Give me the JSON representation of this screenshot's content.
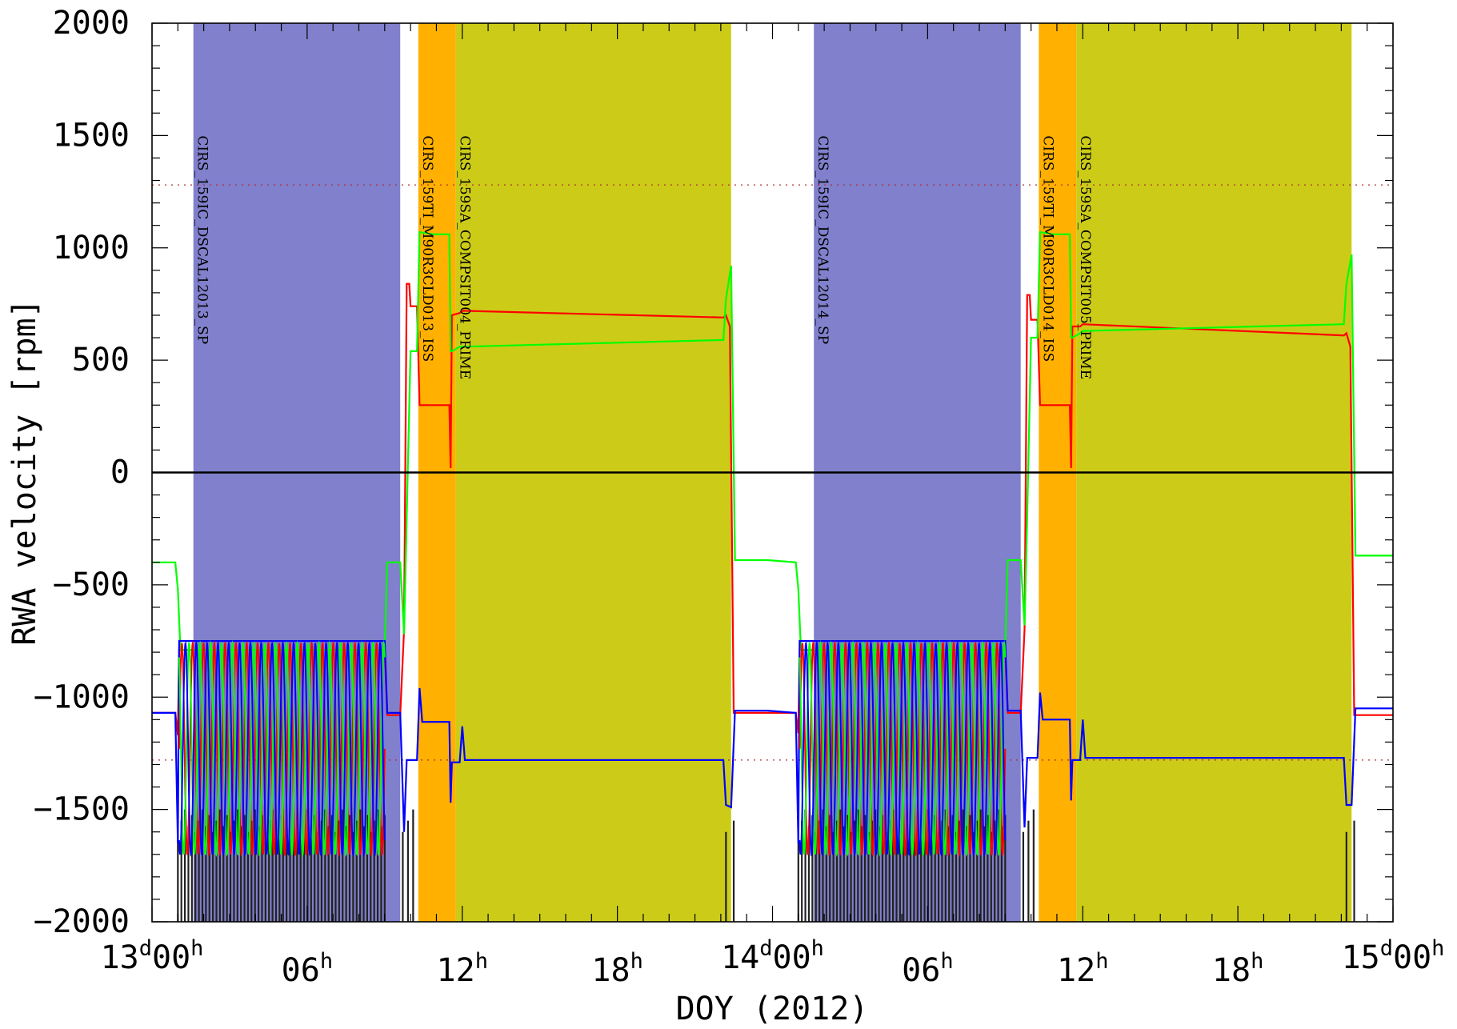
{
  "chart_data": {
    "type": "line",
    "title": "",
    "xlabel": "DOY (2012)",
    "ylabel": "RWA velocity [rpm]",
    "xlim_hours": [
      0,
      48
    ],
    "ylim": [
      -2000,
      2000
    ],
    "y_ticks": [
      -2000,
      -1500,
      -1000,
      -500,
      0,
      500,
      1000,
      1500,
      2000
    ],
    "y_tick_labels": [
      "−2000",
      "−1500",
      "−1000",
      "−500",
      "0",
      "500",
      "1000",
      "1500",
      "2000"
    ],
    "x_ticks": [
      {
        "hour": 0,
        "day": "13",
        "sup": "d",
        "main": "00",
        "unit": "h"
      },
      {
        "hour": 6,
        "day": "",
        "sup": "",
        "main": "06",
        "unit": "h"
      },
      {
        "hour": 12,
        "day": "",
        "sup": "",
        "main": "12",
        "unit": "h"
      },
      {
        "hour": 18,
        "day": "",
        "sup": "",
        "main": "18",
        "unit": "h"
      },
      {
        "hour": 24,
        "day": "14",
        "sup": "d",
        "main": "00",
        "unit": "h"
      },
      {
        "hour": 30,
        "day": "",
        "sup": "",
        "main": "06",
        "unit": "h"
      },
      {
        "hour": 36,
        "day": "",
        "sup": "",
        "main": "12",
        "unit": "h"
      },
      {
        "hour": 42,
        "day": "",
        "sup": "",
        "main": "18",
        "unit": "h"
      },
      {
        "hour": 48,
        "day": "15",
        "sup": "d",
        "main": "00",
        "unit": "h"
      }
    ],
    "limit_lines": [
      1280,
      -1280
    ],
    "zero_line": 0,
    "observations": [
      {
        "label": "CIRS_159IC_DSCAL12013_SP",
        "start": 1.6,
        "end": 9.6,
        "color": "#8080cc"
      },
      {
        "label": "CIRS_159TI_M90R3CLD013_ISS",
        "start": 10.3,
        "end": 11.75,
        "color": "#ffb000"
      },
      {
        "label": "CIRS_159SA_COMPSIT004_PRIME",
        "start": 11.75,
        "end": 22.4,
        "color": "#cccc18"
      },
      {
        "label": "CIRS_159IC_DSCAL12014_SP",
        "start": 25.6,
        "end": 33.6,
        "color": "#8080cc"
      },
      {
        "label": "CIRS_159TI_M90R3CLD014_ISS",
        "start": 34.3,
        "end": 35.75,
        "color": "#ffb000"
      },
      {
        "label": "CIRS_159SA_COMPSIT005_PRIME",
        "start": 35.75,
        "end": 46.4,
        "color": "#cccc18"
      }
    ],
    "series": [
      {
        "color": "#ff0000",
        "points": [
          [
            0,
            -1070
          ],
          [
            0.9,
            -1070
          ],
          [
            1.0,
            -1170
          ],
          [
            1.05,
            -790
          ],
          [
            9.0,
            -790
          ],
          [
            9.1,
            -1080
          ],
          [
            9.6,
            -1080
          ],
          [
            9.75,
            -700
          ],
          [
            9.85,
            840
          ],
          [
            9.95,
            840
          ],
          [
            10.0,
            740
          ],
          [
            10.25,
            740
          ],
          [
            10.35,
            300
          ],
          [
            11.5,
            300
          ],
          [
            11.55,
            20
          ],
          [
            11.6,
            700
          ],
          [
            11.9,
            710
          ],
          [
            12.0,
            720
          ],
          [
            22.1,
            690
          ],
          [
            22.2,
            700
          ],
          [
            22.35,
            650
          ],
          [
            22.5,
            -1070
          ],
          [
            23.8,
            -1070
          ],
          [
            24.9,
            -1070
          ],
          [
            25.0,
            -1160
          ],
          [
            25.05,
            -790
          ],
          [
            33.0,
            -790
          ],
          [
            33.1,
            -1070
          ],
          [
            33.6,
            -1070
          ],
          [
            33.75,
            -700
          ],
          [
            33.85,
            790
          ],
          [
            33.95,
            790
          ],
          [
            34.0,
            680
          ],
          [
            34.25,
            680
          ],
          [
            34.35,
            300
          ],
          [
            35.5,
            300
          ],
          [
            35.55,
            20
          ],
          [
            35.6,
            650
          ],
          [
            35.9,
            650
          ],
          [
            36.0,
            660
          ],
          [
            46.1,
            610
          ],
          [
            46.2,
            620
          ],
          [
            46.35,
            560
          ],
          [
            46.5,
            -1080
          ],
          [
            48,
            -1080
          ]
        ]
      },
      {
        "color": "#00ff00",
        "points": [
          [
            0,
            -400
          ],
          [
            0.9,
            -400
          ],
          [
            1.0,
            -520
          ],
          [
            1.1,
            -790
          ],
          [
            9.0,
            -790
          ],
          [
            9.1,
            -400
          ],
          [
            9.6,
            -400
          ],
          [
            9.75,
            -720
          ],
          [
            9.85,
            -200
          ],
          [
            10.0,
            540
          ],
          [
            10.25,
            540
          ],
          [
            10.35,
            1070
          ],
          [
            10.9,
            1060
          ],
          [
            11.5,
            1060
          ],
          [
            11.55,
            540
          ],
          [
            11.6,
            540
          ],
          [
            11.9,
            560
          ],
          [
            12.0,
            560
          ],
          [
            22.1,
            590
          ],
          [
            22.2,
            770
          ],
          [
            22.4,
            920
          ],
          [
            22.55,
            -390
          ],
          [
            23.8,
            -390
          ],
          [
            24.9,
            -400
          ],
          [
            25.0,
            -520
          ],
          [
            25.1,
            -790
          ],
          [
            33.0,
            -790
          ],
          [
            33.1,
            -390
          ],
          [
            33.6,
            -390
          ],
          [
            33.75,
            -680
          ],
          [
            33.85,
            -200
          ],
          [
            34.0,
            600
          ],
          [
            34.25,
            600
          ],
          [
            34.35,
            1070
          ],
          [
            34.9,
            1060
          ],
          [
            35.5,
            1060
          ],
          [
            35.55,
            600
          ],
          [
            35.6,
            600
          ],
          [
            35.9,
            620
          ],
          [
            36.0,
            630
          ],
          [
            46.1,
            660
          ],
          [
            46.2,
            840
          ],
          [
            46.4,
            970
          ],
          [
            46.55,
            -370
          ],
          [
            48,
            -370
          ]
        ]
      },
      {
        "color": "#0000ff",
        "points": [
          [
            0,
            -1070
          ],
          [
            0.9,
            -1070
          ],
          [
            1.0,
            -1650
          ],
          [
            1.05,
            -750
          ],
          [
            9.0,
            -750
          ],
          [
            9.1,
            -1070
          ],
          [
            9.6,
            -1070
          ],
          [
            9.75,
            -1600
          ],
          [
            9.85,
            -1280
          ],
          [
            10.25,
            -1280
          ],
          [
            10.35,
            -960
          ],
          [
            10.45,
            -1110
          ],
          [
            11.5,
            -1110
          ],
          [
            11.55,
            -1470
          ],
          [
            11.6,
            -1290
          ],
          [
            11.9,
            -1290
          ],
          [
            12.0,
            -1130
          ],
          [
            12.1,
            -1280
          ],
          [
            22.1,
            -1280
          ],
          [
            22.2,
            -1480
          ],
          [
            22.4,
            -1490
          ],
          [
            22.55,
            -1060
          ],
          [
            23.8,
            -1060
          ],
          [
            24.9,
            -1070
          ],
          [
            25.0,
            -1650
          ],
          [
            25.05,
            -750
          ],
          [
            33.0,
            -750
          ],
          [
            33.1,
            -1060
          ],
          [
            33.6,
            -1060
          ],
          [
            33.75,
            -1580
          ],
          [
            33.85,
            -1270
          ],
          [
            34.25,
            -1270
          ],
          [
            34.35,
            -980
          ],
          [
            34.45,
            -1100
          ],
          [
            35.5,
            -1100
          ],
          [
            35.55,
            -1460
          ],
          [
            35.6,
            -1280
          ],
          [
            35.9,
            -1280
          ],
          [
            36.0,
            -1100
          ],
          [
            36.1,
            -1270
          ],
          [
            46.1,
            -1270
          ],
          [
            46.2,
            -1480
          ],
          [
            46.4,
            -1480
          ],
          [
            46.55,
            -1050
          ],
          [
            48,
            -1050
          ]
        ]
      }
    ],
    "oscillation_bursts": [
      {
        "start": 1.05,
        "end": 9.0,
        "cycles": 19,
        "min": -1700,
        "max": -760,
        "colors": [
          "#ff0000",
          "#00ff00",
          "#0000ff"
        ]
      },
      {
        "start": 25.05,
        "end": 33.0,
        "cycles": 19,
        "min": -1700,
        "max": -760,
        "colors": [
          "#ff0000",
          "#00ff00",
          "#0000ff"
        ]
      }
    ],
    "event_spikes": [
      {
        "start": 1.0,
        "end": 9.0,
        "count": 60,
        "top": -1600,
        "bottom": -2000
      },
      {
        "start": 9.7,
        "end": 10.1,
        "count": 3,
        "top": -1600,
        "bottom": -2000
      },
      {
        "start": 22.2,
        "end": 22.5,
        "count": 2,
        "top": -1600,
        "bottom": -2000
      },
      {
        "start": 25.0,
        "end": 33.0,
        "count": 60,
        "top": -1600,
        "bottom": -2000
      },
      {
        "start": 33.7,
        "end": 34.1,
        "count": 3,
        "top": -1600,
        "bottom": -2000
      },
      {
        "start": 46.2,
        "end": 46.5,
        "count": 2,
        "top": -1600,
        "bottom": -2000
      }
    ]
  }
}
